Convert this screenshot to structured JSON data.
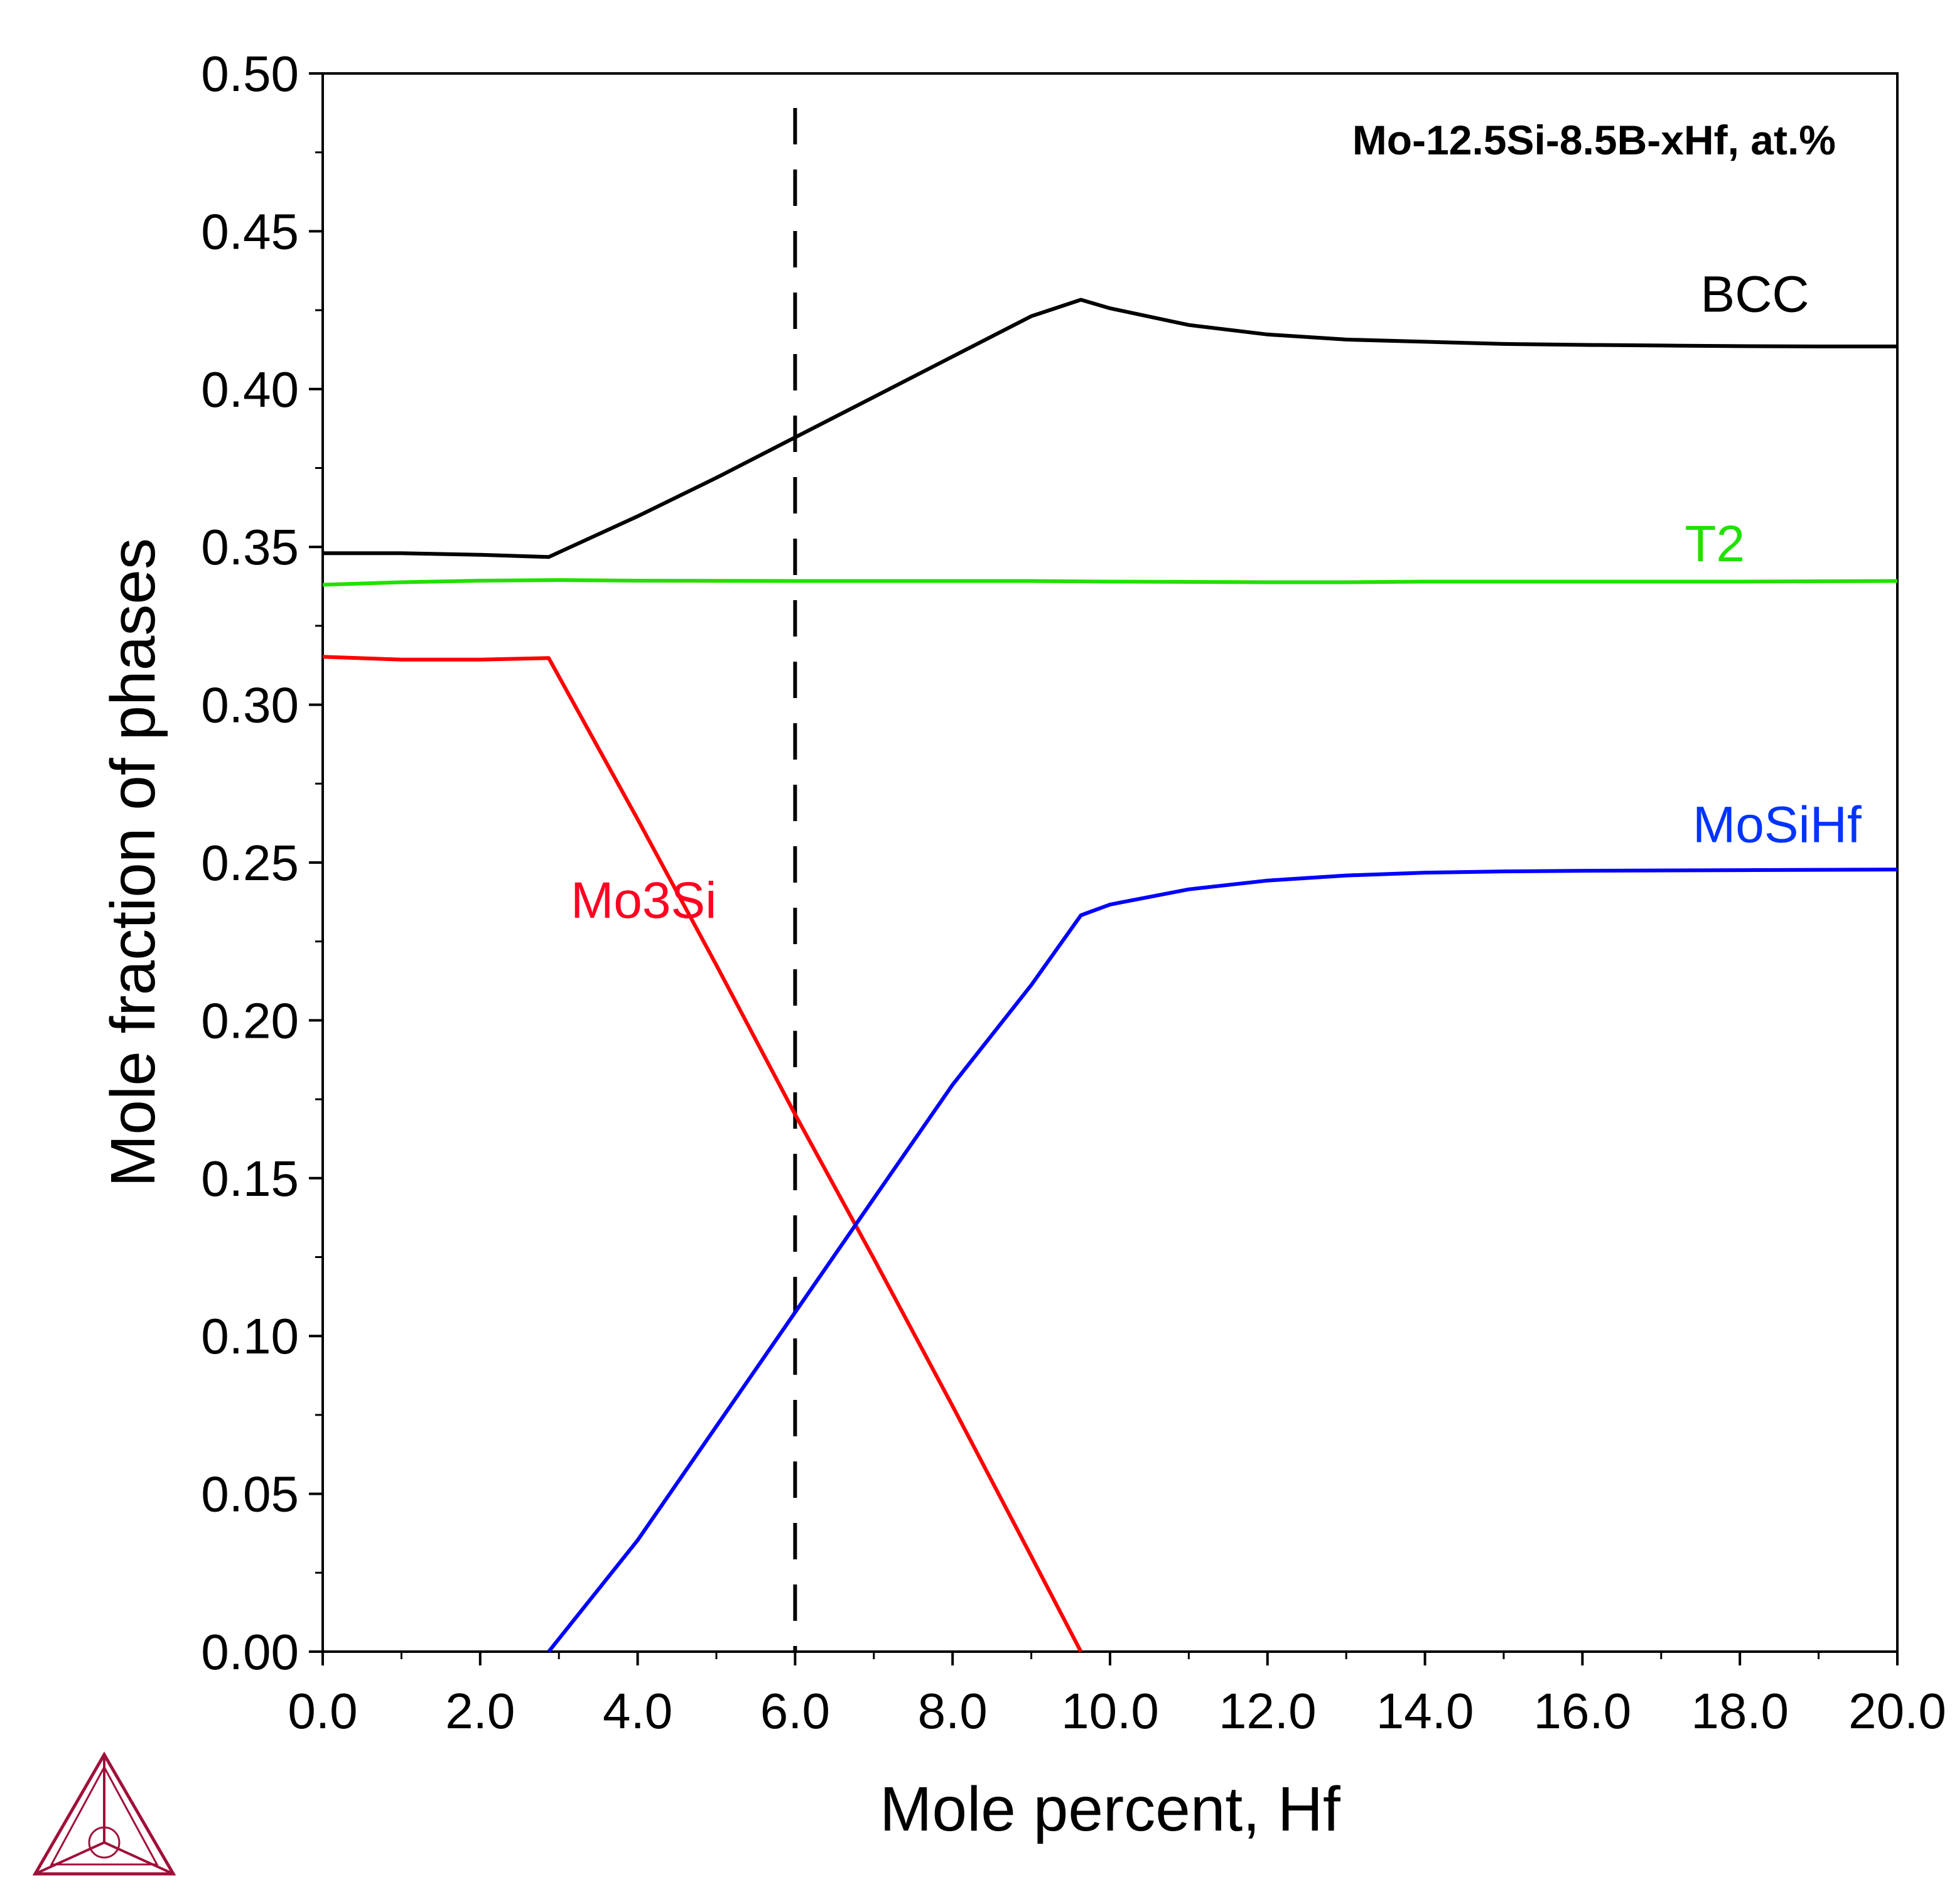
{
  "chart_data": {
    "type": "line",
    "title": "Mo-12.5Si-8.5B-xHf, at.%",
    "xlabel": "Mole percent, Hf",
    "ylabel": "Mole fraction of phases",
    "xlim": [
      0,
      20
    ],
    "ylim": [
      0,
      0.5
    ],
    "x_ticks": [
      "0.0",
      "2.0",
      "4.0",
      "6.0",
      "8.0",
      "10.0",
      "12.0",
      "14.0",
      "16.0",
      "18.0",
      "20.0"
    ],
    "y_ticks": [
      "0.00",
      "0.05",
      "0.10",
      "0.15",
      "0.20",
      "0.25",
      "0.30",
      "0.35",
      "0.40",
      "0.45",
      "0.50"
    ],
    "grid": false,
    "legend": "inline labels",
    "reference_line": {
      "x": 6.0,
      "style": "dashed",
      "color": "#000000"
    },
    "series": [
      {
        "name": "BCC",
        "color": "#000000",
        "points": [
          [
            0,
            0.348
          ],
          [
            1,
            0.348
          ],
          [
            2,
            0.3475
          ],
          [
            2.87,
            0.3468
          ],
          [
            4,
            0.3597
          ],
          [
            5,
            0.3719
          ],
          [
            6,
            0.3847
          ],
          [
            7,
            0.3975
          ],
          [
            8,
            0.4103
          ],
          [
            9,
            0.4231
          ],
          [
            9.63,
            0.4283
          ],
          [
            10,
            0.4256
          ],
          [
            11,
            0.4203
          ],
          [
            12,
            0.4173
          ],
          [
            13,
            0.4157
          ],
          [
            14,
            0.415
          ],
          [
            15,
            0.4143
          ],
          [
            16,
            0.414
          ],
          [
            17,
            0.4138
          ],
          [
            18,
            0.4136
          ],
          [
            19,
            0.4135
          ],
          [
            20,
            0.4135
          ]
        ]
      },
      {
        "name": "T2",
        "color": "#22e000",
        "points": [
          [
            0,
            0.338
          ],
          [
            1,
            0.3388
          ],
          [
            2,
            0.3393
          ],
          [
            3,
            0.3395
          ],
          [
            4,
            0.3393
          ],
          [
            6,
            0.3392
          ],
          [
            8,
            0.3392
          ],
          [
            9,
            0.3392
          ],
          [
            10,
            0.339
          ],
          [
            12,
            0.3388
          ],
          [
            13,
            0.3388
          ],
          [
            14,
            0.339
          ],
          [
            16,
            0.339
          ],
          [
            18,
            0.339
          ],
          [
            20,
            0.3392
          ]
        ]
      },
      {
        "name": "Mo3Si",
        "color": "#ff0000",
        "points": [
          [
            0,
            0.3152
          ],
          [
            1,
            0.3143
          ],
          [
            2,
            0.3143
          ],
          [
            2.87,
            0.3148
          ],
          [
            4,
            0.2637
          ],
          [
            5,
            0.2175
          ],
          [
            6,
            0.1702
          ],
          [
            7,
            0.1245
          ],
          [
            8,
            0.0778
          ],
          [
            9,
            0.0302
          ],
          [
            9.63,
            0.0
          ]
        ]
      },
      {
        "name": "MoSiHf",
        "color": "#0000ff",
        "points": [
          [
            2.87,
            0.0
          ],
          [
            4,
            0.0353
          ],
          [
            5,
            0.0714
          ],
          [
            6,
            0.1075
          ],
          [
            7,
            0.1436
          ],
          [
            8,
            0.1796
          ],
          [
            9,
            0.2112
          ],
          [
            9.63,
            0.2333
          ],
          [
            10,
            0.2367
          ],
          [
            11,
            0.2415
          ],
          [
            12,
            0.2443
          ],
          [
            13,
            0.2459
          ],
          [
            14,
            0.2468
          ],
          [
            15,
            0.2472
          ],
          [
            16,
            0.2474
          ],
          [
            18,
            0.2476
          ],
          [
            20,
            0.2478
          ]
        ]
      }
    ],
    "series_labels": [
      {
        "text": "BCC",
        "x": 17.5,
        "y": 0.4245,
        "color": "#000000"
      },
      {
        "text": "T2",
        "x": 17.3,
        "y": 0.3455,
        "color": "#22e000"
      },
      {
        "text": "Mo3Si",
        "x": 3.15,
        "y": 0.2325,
        "color": "#ff0022"
      },
      {
        "text": "MoSiHf",
        "x": 17.4,
        "y": 0.2565,
        "color": "#0033ff"
      }
    ]
  },
  "logo": {
    "name": "triangle-logo-icon",
    "color": "#a0103a"
  }
}
